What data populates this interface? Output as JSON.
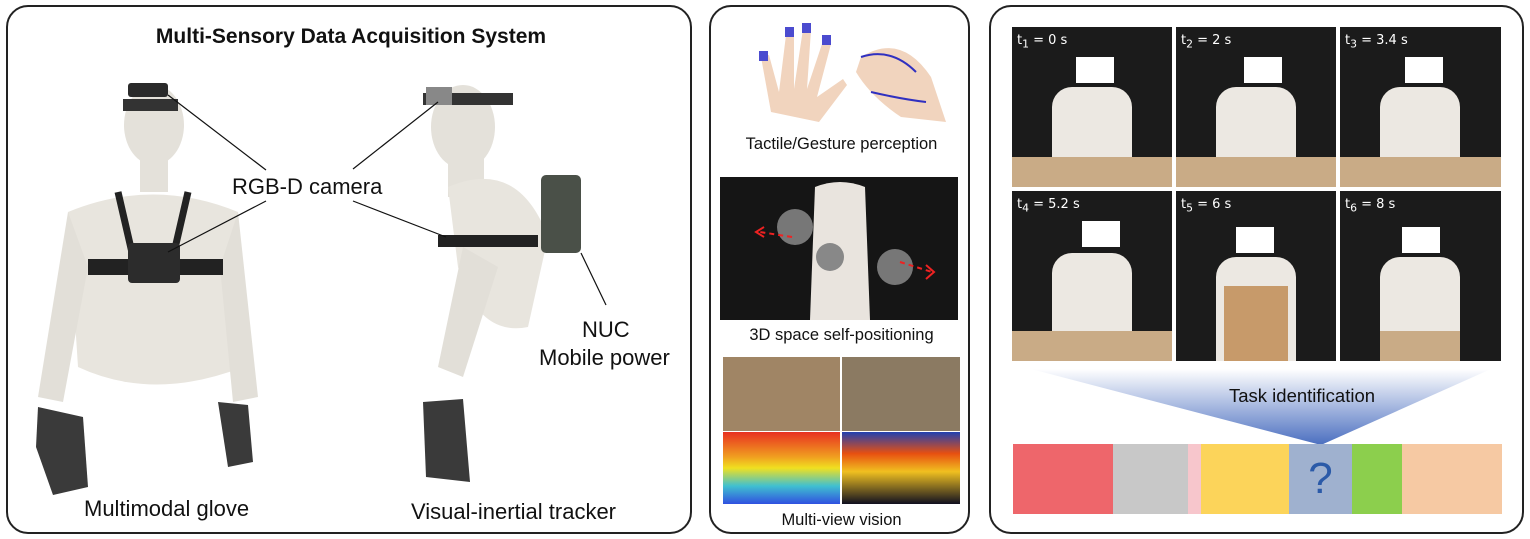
{
  "left_panel": {
    "title": "Multi-Sensory Data Acquisition System",
    "camera_label": "RGB-D camera",
    "nuc_label_1": "NUC",
    "nuc_label_2": "Mobile power",
    "glove_label": "Multimodal glove",
    "tracker_label": "Visual-inertial tracker"
  },
  "middle_panel": {
    "tactile_caption": "Tactile/Gesture perception",
    "positioning_caption": "3D space self-positioning",
    "vision_caption": "Multi-view vision"
  },
  "right_panel": {
    "frames": [
      {
        "t": "t",
        "sub": "1",
        "rest": " = 0 s"
      },
      {
        "t": "t",
        "sub": "2",
        "rest": " = 2 s"
      },
      {
        "t": "t",
        "sub": "3",
        "rest": " = 3.4 s"
      },
      {
        "t": "t",
        "sub": "4",
        "rest": " = 5.2 s"
      },
      {
        "t": "t",
        "sub": "5",
        "rest": " = 6 s"
      },
      {
        "t": "t",
        "sub": "6",
        "rest": " = 8 s"
      }
    ],
    "task_label": "Task identification",
    "question_mark": "?",
    "segment_colors": [
      "#ee666b",
      "#c8c8c8",
      "#f7c6cc",
      "#fcd45a",
      "#9fb1cf",
      "#8ccf4d",
      "#f6c9a3"
    ]
  }
}
